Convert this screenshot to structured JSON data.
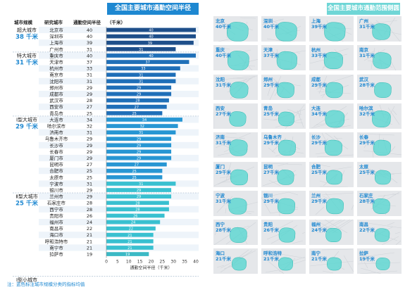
{
  "titles": {
    "chart": "全国主要城市通勤空间半径",
    "maps": "全国主要城市通勤范围侧圆"
  },
  "table_headers": {
    "tier": "城市规模",
    "city": "研究城市",
    "radius": "通勤空间半径",
    "unit": "（千米）"
  },
  "tiers": [
    {
      "name": "超大城市",
      "avg": "38 千米",
      "row": 0
    },
    {
      "name": "特大城市",
      "avg": "31 千米",
      "row": 4
    },
    {
      "name": "Ⅰ型大城市",
      "avg": "29 千米",
      "row": 14
    },
    {
      "name": "Ⅱ型大城市",
      "avg": "25 千米",
      "row": 26
    },
    {
      "name": "Ⅰ型小城市",
      "avg": "",
      "row": 39
    }
  ],
  "note": "注：蓝色标注城市规模分类的指标均值",
  "chart_data": {
    "type": "bar",
    "orientation": "horizontal",
    "xlabel": "通勤空间半径（千米）",
    "xlim": [
      0,
      40
    ],
    "xticks": [
      0,
      5,
      10,
      15,
      20,
      25,
      30,
      35,
      40
    ],
    "categories": [
      "北京市",
      "深圳市",
      "上海市",
      "广州市",
      "重庆市",
      "天津市",
      "杭州市",
      "南京市",
      "沈阳市",
      "郑州市",
      "成都市",
      "武汉市",
      "西安市",
      "青岛市",
      "大连市",
      "哈尔滨市",
      "济南市",
      "乌鲁木齐市",
      "长沙市",
      "长春市",
      "厦门市",
      "昆明市",
      "合肥市",
      "太原市",
      "宁波市",
      "银川市",
      "兰州市",
      "石家庄市",
      "西宁市",
      "贵阳市",
      "福州市",
      "南昌市",
      "海口市",
      "呼和浩特市",
      "南宁市",
      "拉萨市"
    ],
    "values": [
      40,
      40,
      39,
      31,
      40,
      37,
      33,
      31,
      31,
      29,
      29,
      28,
      27,
      25,
      34,
      32,
      31,
      29,
      29,
      29,
      29,
      27,
      25,
      25,
      31,
      29,
      29,
      28,
      28,
      26,
      24,
      22,
      21,
      21,
      21,
      19
    ],
    "tier_groups": [
      0,
      0,
      0,
      0,
      1,
      1,
      1,
      1,
      1,
      1,
      1,
      1,
      1,
      1,
      2,
      2,
      2,
      2,
      2,
      2,
      2,
      2,
      2,
      2,
      3,
      3,
      3,
      3,
      3,
      3,
      3,
      3,
      3,
      3,
      3,
      4
    ],
    "colors": [
      "#1e4f8a",
      "#1f6fb8",
      "#2796d3",
      "#39c0d0",
      "#3bb9c5"
    ]
  },
  "maps": [
    {
      "city": "北京",
      "radius": "40千米"
    },
    {
      "city": "深圳",
      "radius": "40千米"
    },
    {
      "city": "上海",
      "radius": "39千米"
    },
    {
      "city": "广州",
      "radius": "31千米"
    },
    {
      "city": "重庆",
      "radius": "40千米"
    },
    {
      "city": "天津",
      "radius": "37千米"
    },
    {
      "city": "杭州",
      "radius": "33千米"
    },
    {
      "city": "南京",
      "radius": "31千米"
    },
    {
      "city": "沈阳",
      "radius": "31千米"
    },
    {
      "city": "郑州",
      "radius": "29千米"
    },
    {
      "city": "成都",
      "radius": "29千米"
    },
    {
      "city": "武汉",
      "radius": "28千米"
    },
    {
      "city": "西安",
      "radius": "27千米"
    },
    {
      "city": "青岛",
      "radius": "25千米"
    },
    {
      "city": "大连",
      "radius": "34千米"
    },
    {
      "city": "哈尔滨",
      "radius": "32千米"
    },
    {
      "city": "济南",
      "radius": "31千米"
    },
    {
      "city": "乌鲁木齐",
      "radius": "29千米"
    },
    {
      "city": "长沙",
      "radius": "29千米"
    },
    {
      "city": "长春",
      "radius": "29千米"
    },
    {
      "city": "厦门",
      "radius": "29千米"
    },
    {
      "city": "昆明",
      "radius": "27千米"
    },
    {
      "city": "合肥",
      "radius": "25千米"
    },
    {
      "city": "太原",
      "radius": "25千米"
    },
    {
      "city": "宁波",
      "radius": "31千米"
    },
    {
      "city": "银川",
      "radius": "29千米"
    },
    {
      "city": "兰州",
      "radius": "29千米"
    },
    {
      "city": "石家庄",
      "radius": "28千米"
    },
    {
      "city": "西宁",
      "radius": "28千米"
    },
    {
      "city": "贵阳",
      "radius": "26千米"
    },
    {
      "city": "福州",
      "radius": "24千米"
    },
    {
      "city": "南昌",
      "radius": "22千米"
    },
    {
      "city": "海口",
      "radius": "21千米"
    },
    {
      "city": "呼和浩特",
      "radius": "21千米"
    },
    {
      "city": "南宁",
      "radius": "21千米"
    },
    {
      "city": "拉萨",
      "radius": "19千米"
    }
  ]
}
